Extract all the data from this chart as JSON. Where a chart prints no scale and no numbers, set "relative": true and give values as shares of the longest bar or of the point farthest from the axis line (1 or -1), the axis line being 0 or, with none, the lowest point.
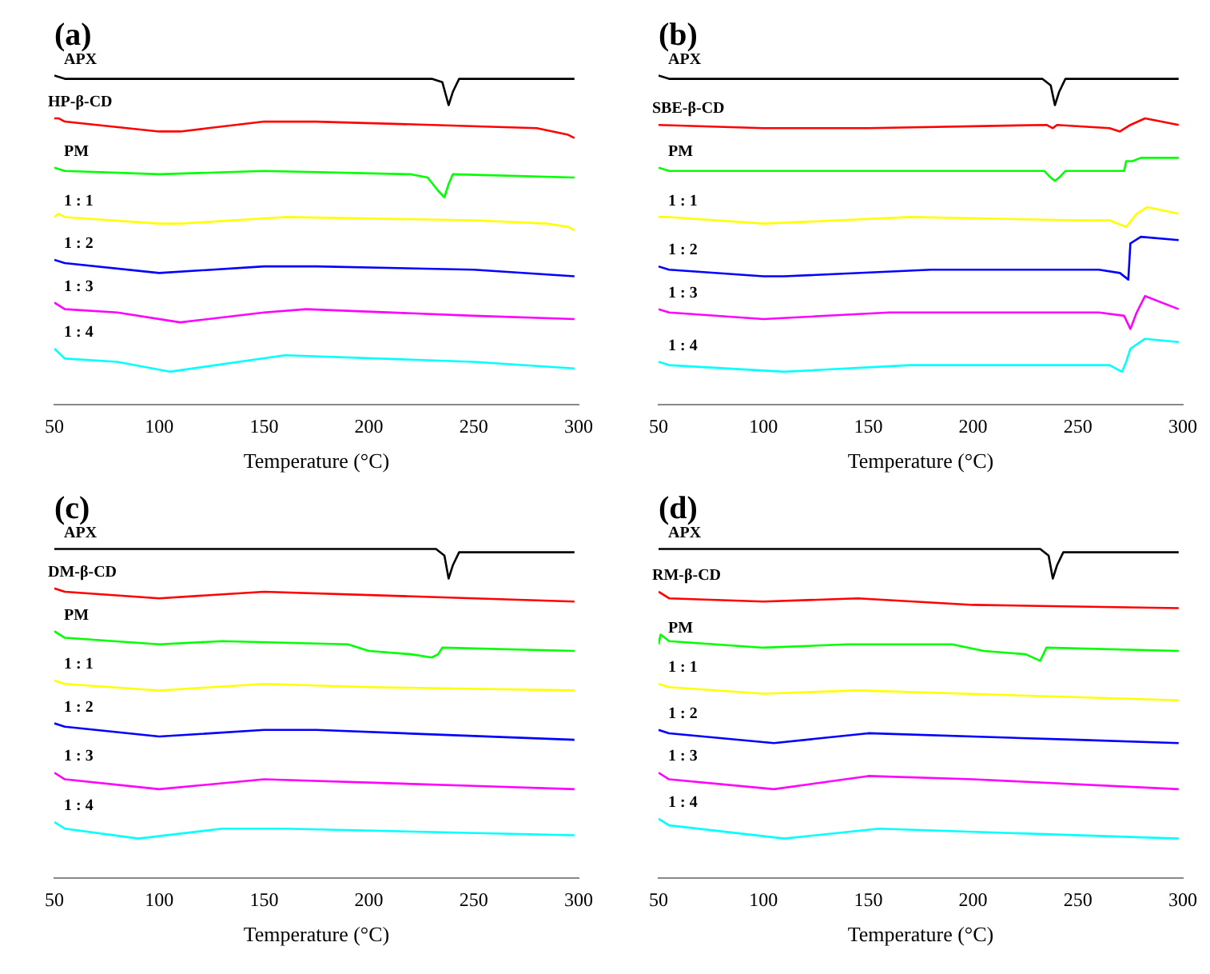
{
  "chart_data": [
    {
      "type": "line",
      "title": "(a)",
      "xlabel": "Temperature (°C)",
      "relative": true,
      "xlim": [
        50,
        300
      ],
      "xticks": [
        50,
        100,
        150,
        200,
        250,
        300
      ],
      "grid": false,
      "legend": false,
      "marker": "none",
      "line_style": "solid",
      "series": [
        {
          "name": "APX",
          "color": "#000000",
          "x": [
            50,
            55,
            230,
            235,
            238,
            240,
            243,
            298
          ],
          "values": [
            1.0,
            0.99,
            0.99,
            0.98,
            0.91,
            0.95,
            0.99,
            0.99
          ]
        },
        {
          "name": "HP-β-CD",
          "color": "#ff0000",
          "x": [
            50,
            52,
            55,
            100,
            110,
            150,
            175,
            230,
            280,
            295,
            298
          ],
          "values": [
            0.87,
            0.87,
            0.86,
            0.83,
            0.83,
            0.86,
            0.86,
            0.85,
            0.84,
            0.82,
            0.81
          ]
        },
        {
          "name": "PM",
          "color": "#00ff00",
          "x": [
            50,
            55,
            100,
            150,
            220,
            228,
            233,
            236,
            238,
            240,
            298
          ],
          "values": [
            0.72,
            0.71,
            0.7,
            0.71,
            0.7,
            0.69,
            0.65,
            0.63,
            0.67,
            0.7,
            0.69
          ]
        },
        {
          "name": "1 : 1",
          "color": "#ffff00",
          "x": [
            50,
            52,
            55,
            100,
            110,
            160,
            250,
            285,
            295,
            298
          ],
          "values": [
            0.57,
            0.58,
            0.57,
            0.55,
            0.55,
            0.57,
            0.56,
            0.55,
            0.54,
            0.53
          ]
        },
        {
          "name": "1 : 2",
          "color": "#0000ff",
          "x": [
            50,
            55,
            100,
            150,
            175,
            250,
            298
          ],
          "values": [
            0.44,
            0.43,
            0.4,
            0.42,
            0.42,
            0.41,
            0.39
          ]
        },
        {
          "name": "1 : 3",
          "color": "#ff00ff",
          "x": [
            50,
            55,
            80,
            110,
            150,
            170,
            250,
            298
          ],
          "values": [
            0.31,
            0.29,
            0.28,
            0.25,
            0.28,
            0.29,
            0.27,
            0.26
          ]
        },
        {
          "name": "1 : 4",
          "color": "#00ffff",
          "x": [
            50,
            55,
            80,
            105,
            160,
            250,
            298
          ],
          "values": [
            0.17,
            0.14,
            0.13,
            0.1,
            0.15,
            0.13,
            0.11
          ]
        }
      ]
    },
    {
      "type": "line",
      "title": "(b)",
      "xlabel": "Temperature (°C)",
      "relative": true,
      "xlim": [
        50,
        300
      ],
      "xticks": [
        50,
        100,
        150,
        200,
        250,
        300
      ],
      "grid": false,
      "legend": false,
      "marker": "none",
      "line_style": "solid",
      "series": [
        {
          "name": "APX",
          "color": "#000000",
          "x": [
            50,
            55,
            233,
            237,
            239,
            241,
            244,
            298
          ],
          "values": [
            1.0,
            0.99,
            0.99,
            0.97,
            0.91,
            0.95,
            0.99,
            0.99
          ]
        },
        {
          "name": "SBE-β-CD",
          "color": "#ff0000",
          "x": [
            50,
            100,
            150,
            235,
            238,
            240,
            265,
            270,
            275,
            282,
            298
          ],
          "values": [
            0.85,
            0.84,
            0.84,
            0.85,
            0.84,
            0.85,
            0.84,
            0.83,
            0.85,
            0.87,
            0.85
          ]
        },
        {
          "name": "PM",
          "color": "#00ff00",
          "x": [
            50,
            55,
            100,
            234,
            237,
            239,
            241,
            244,
            270,
            272,
            273,
            276,
            280,
            298
          ],
          "values": [
            0.72,
            0.71,
            0.71,
            0.71,
            0.69,
            0.68,
            0.69,
            0.71,
            0.71,
            0.71,
            0.74,
            0.74,
            0.75,
            0.75
          ]
        },
        {
          "name": "1 : 1",
          "color": "#ffff00",
          "x": [
            50,
            55,
            100,
            170,
            250,
            265,
            273,
            278,
            283,
            298
          ],
          "values": [
            0.57,
            0.57,
            0.55,
            0.57,
            0.56,
            0.56,
            0.54,
            0.58,
            0.6,
            0.58
          ]
        },
        {
          "name": "1 : 2",
          "color": "#0000ff",
          "x": [
            50,
            55,
            100,
            110,
            180,
            260,
            270,
            274,
            275,
            280,
            298
          ],
          "values": [
            0.42,
            0.41,
            0.39,
            0.39,
            0.41,
            0.41,
            0.4,
            0.38,
            0.49,
            0.51,
            0.5
          ]
        },
        {
          "name": "1 : 3",
          "color": "#ff00ff",
          "x": [
            50,
            55,
            100,
            160,
            260,
            272,
            275,
            278,
            282,
            298
          ],
          "values": [
            0.29,
            0.28,
            0.26,
            0.28,
            0.28,
            0.27,
            0.23,
            0.28,
            0.33,
            0.29
          ]
        },
        {
          "name": "1 : 4",
          "color": "#00ffff",
          "x": [
            50,
            55,
            110,
            170,
            265,
            271,
            273,
            275,
            282,
            298
          ],
          "values": [
            0.13,
            0.12,
            0.1,
            0.12,
            0.12,
            0.1,
            0.13,
            0.17,
            0.2,
            0.19
          ]
        }
      ]
    },
    {
      "type": "line",
      "title": "(c)",
      "xlabel": "Temperature (°C)",
      "relative": true,
      "xlim": [
        50,
        300
      ],
      "xticks": [
        50,
        100,
        150,
        200,
        250,
        300
      ],
      "grid": false,
      "legend": false,
      "marker": "none",
      "line_style": "solid",
      "series": [
        {
          "name": "APX",
          "color": "#000000",
          "x": [
            50,
            55,
            232,
            236,
            238,
            240,
            243,
            298
          ],
          "values": [
            1.0,
            1.0,
            1.0,
            0.98,
            0.91,
            0.95,
            0.99,
            0.99
          ]
        },
        {
          "name": "DM-β-CD",
          "color": "#ff0000",
          "x": [
            50,
            55,
            100,
            150,
            250,
            298
          ],
          "values": [
            0.88,
            0.87,
            0.85,
            0.87,
            0.85,
            0.84
          ]
        },
        {
          "name": "PM",
          "color": "#00ff00",
          "x": [
            50,
            55,
            100,
            130,
            190,
            200,
            220,
            230,
            233,
            235,
            298
          ],
          "values": [
            0.75,
            0.73,
            0.71,
            0.72,
            0.71,
            0.69,
            0.68,
            0.67,
            0.68,
            0.7,
            0.69
          ]
        },
        {
          "name": "1 : 1",
          "color": "#ffff00",
          "x": [
            50,
            55,
            100,
            150,
            200,
            298
          ],
          "values": [
            0.6,
            0.59,
            0.57,
            0.59,
            0.58,
            0.57
          ]
        },
        {
          "name": "1 : 2",
          "color": "#0000ff",
          "x": [
            50,
            55,
            100,
            150,
            175,
            298
          ],
          "values": [
            0.47,
            0.46,
            0.43,
            0.45,
            0.45,
            0.42
          ]
        },
        {
          "name": "1 : 3",
          "color": "#ff00ff",
          "x": [
            50,
            55,
            100,
            150,
            250,
            298
          ],
          "values": [
            0.32,
            0.3,
            0.27,
            0.3,
            0.28,
            0.27
          ]
        },
        {
          "name": "1 : 4",
          "color": "#00ffff",
          "x": [
            50,
            55,
            90,
            130,
            160,
            298
          ],
          "values": [
            0.17,
            0.15,
            0.12,
            0.15,
            0.15,
            0.13
          ]
        }
      ]
    },
    {
      "type": "line",
      "title": "(d)",
      "xlabel": "Temperature (°C)",
      "relative": true,
      "xlim": [
        50,
        300
      ],
      "xticks": [
        50,
        100,
        150,
        200,
        250,
        300
      ],
      "grid": false,
      "legend": false,
      "marker": "none",
      "line_style": "solid",
      "series": [
        {
          "name": "APX",
          "color": "#000000",
          "x": [
            50,
            55,
            232,
            236,
            238,
            240,
            243,
            298
          ],
          "values": [
            1.0,
            1.0,
            1.0,
            0.98,
            0.91,
            0.95,
            0.99,
            0.99
          ]
        },
        {
          "name": "RM-β-CD",
          "color": "#ff0000",
          "x": [
            50,
            55,
            100,
            145,
            200,
            298
          ],
          "values": [
            0.87,
            0.85,
            0.84,
            0.85,
            0.83,
            0.82
          ]
        },
        {
          "name": "PM",
          "color": "#00ff00",
          "x": [
            50,
            51,
            53,
            55,
            100,
            140,
            190,
            205,
            225,
            232,
            235,
            298
          ],
          "values": [
            0.71,
            0.74,
            0.73,
            0.72,
            0.7,
            0.71,
            0.71,
            0.69,
            0.68,
            0.66,
            0.7,
            0.69
          ]
        },
        {
          "name": "1 : 1",
          "color": "#ffff00",
          "x": [
            50,
            55,
            100,
            145,
            298
          ],
          "values": [
            0.59,
            0.58,
            0.56,
            0.57,
            0.54
          ]
        },
        {
          "name": "1 : 2",
          "color": "#0000ff",
          "x": [
            50,
            55,
            105,
            150,
            250,
            298
          ],
          "values": [
            0.45,
            0.44,
            0.41,
            0.44,
            0.42,
            0.41
          ]
        },
        {
          "name": "1 : 3",
          "color": "#ff00ff",
          "x": [
            50,
            55,
            105,
            150,
            200,
            298
          ],
          "values": [
            0.32,
            0.3,
            0.27,
            0.31,
            0.3,
            0.27
          ]
        },
        {
          "name": "1 : 4",
          "color": "#00ffff",
          "x": [
            50,
            55,
            110,
            155,
            298
          ],
          "values": [
            0.18,
            0.16,
            0.12,
            0.15,
            0.12
          ]
        }
      ]
    }
  ]
}
